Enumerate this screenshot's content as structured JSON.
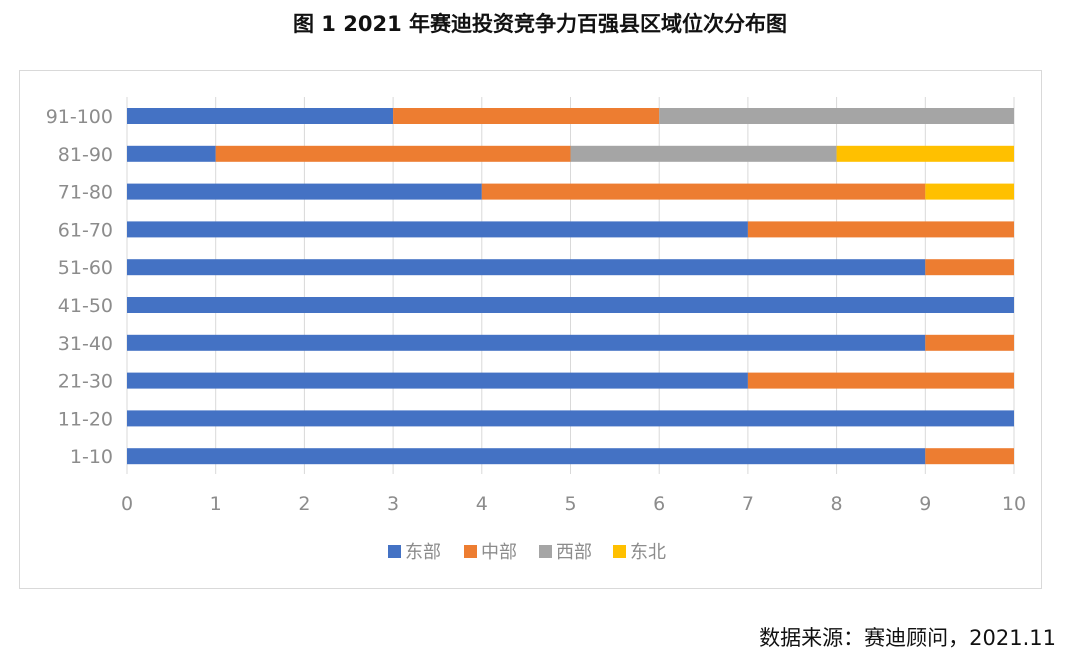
{
  "title": "图  1 2021 年赛迪投资竞争力百强县区域位次分布图",
  "source": "数据来源：赛迪顾问，2021.11",
  "chart_data": {
    "type": "bar",
    "orientation": "horizontal",
    "stacked": true,
    "categories": [
      "91-100",
      "81-90",
      "71-80",
      "61-70",
      "51-60",
      "41-50",
      "31-40",
      "21-30",
      "11-20",
      "1-10"
    ],
    "series": [
      {
        "name": "东部",
        "color": "#4472C4",
        "values": [
          3,
          1,
          4,
          7,
          9,
          10,
          9,
          7,
          10,
          9
        ]
      },
      {
        "name": "中部",
        "color": "#ED7D31",
        "values": [
          3,
          4,
          5,
          3,
          1,
          0,
          1,
          3,
          0,
          1
        ]
      },
      {
        "name": "西部",
        "color": "#A5A5A5",
        "values": [
          4,
          3,
          0,
          0,
          0,
          0,
          0,
          0,
          0,
          0
        ]
      },
      {
        "name": "东北",
        "color": "#FFC000",
        "values": [
          0,
          2,
          1,
          0,
          0,
          0,
          0,
          0,
          0,
          0
        ]
      }
    ],
    "xlim": [
      0,
      10
    ],
    "xticks": [
      "0",
      "1",
      "2",
      "3",
      "4",
      "5",
      "6",
      "7",
      "8",
      "9",
      "10"
    ],
    "grid": true,
    "legend_position": "bottom"
  }
}
